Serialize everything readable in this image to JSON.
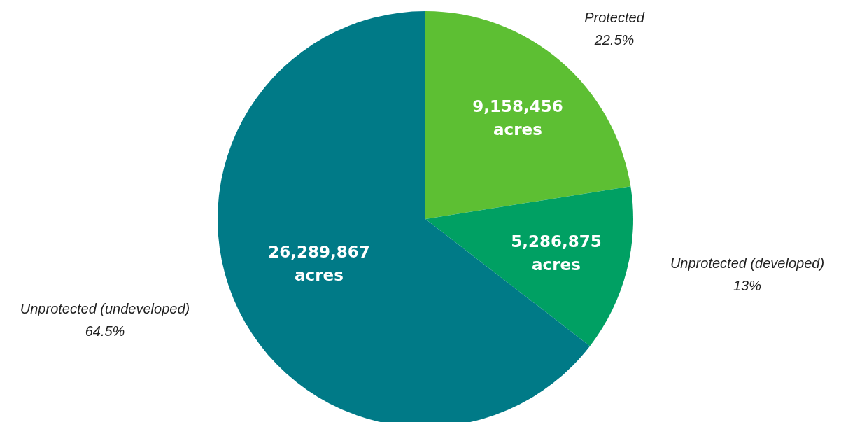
{
  "chart_data": {
    "type": "pie",
    "categories": [
      "Protected",
      "Unprotected (developed)",
      "Unprotected (undeveloped)"
    ],
    "values": [
      9158456,
      5286875,
      26289867
    ],
    "value_labels": [
      "9,158,456 acres",
      "5,286,875 acres",
      "26,289,867 acres"
    ],
    "annotations": [
      "22.5%",
      "13%",
      "64.5%"
    ],
    "colors": [
      "#5dbf33",
      "#00a063",
      "#007a87"
    ],
    "legend": false
  }
}
